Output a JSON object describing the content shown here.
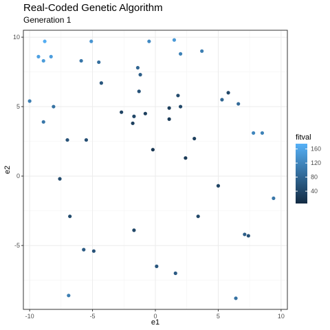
{
  "chart_data": {
    "type": "scatter",
    "title": "Real-Coded Genetic Algorithm",
    "subtitle": "Generation 1",
    "xlabel": "e1",
    "ylabel": "e2",
    "xlim": [
      -10.5,
      10.5
    ],
    "ylim": [
      -9.6,
      10.5
    ],
    "x_ticks": [
      -10,
      -5,
      0,
      5,
      10
    ],
    "y_ticks": [
      -5,
      0,
      5,
      10
    ],
    "x_tick_labels": [
      "-10",
      "-5",
      "0",
      "5",
      "10"
    ],
    "y_tick_labels": [
      "-5",
      "0",
      "5",
      "10"
    ],
    "grid": true,
    "legend": {
      "title": "fitval",
      "placement": "right",
      "range": [
        5,
        175
      ],
      "ticks": [
        40,
        80,
        120,
        160
      ],
      "tick_labels": [
        "40",
        "80",
        "120",
        "160"
      ],
      "color_low": "#132b43",
      "color_high": "#56b1f7"
    },
    "points": [
      {
        "x": -8.8,
        "y": 9.7,
        "fitval": 170
      },
      {
        "x": -9.3,
        "y": 8.6,
        "fitval": 155
      },
      {
        "x": -8.3,
        "y": 8.6,
        "fitval": 150
      },
      {
        "x": -8.9,
        "y": 8.3,
        "fitval": 148
      },
      {
        "x": -5.1,
        "y": 9.7,
        "fitval": 140
      },
      {
        "x": -0.5,
        "y": 9.7,
        "fitval": 125
      },
      {
        "x": 1.5,
        "y": 9.8,
        "fitval": 145
      },
      {
        "x": 2.0,
        "y": 8.8,
        "fitval": 115
      },
      {
        "x": 3.7,
        "y": 9.0,
        "fitval": 110
      },
      {
        "x": -5.9,
        "y": 8.3,
        "fitval": 100
      },
      {
        "x": -4.5,
        "y": 8.2,
        "fitval": 90
      },
      {
        "x": -1.4,
        "y": 7.8,
        "fitval": 80
      },
      {
        "x": -1.2,
        "y": 7.3,
        "fitval": 70
      },
      {
        "x": -4.3,
        "y": 6.7,
        "fitval": 60
      },
      {
        "x": -1.3,
        "y": 6.1,
        "fitval": 55
      },
      {
        "x": 1.8,
        "y": 5.8,
        "fitval": 45
      },
      {
        "x": 5.8,
        "y": 6.0,
        "fitval": 40
      },
      {
        "x": 5.3,
        "y": 5.5,
        "fitval": 80
      },
      {
        "x": 6.6,
        "y": 5.2,
        "fitval": 85
      },
      {
        "x": -10.0,
        "y": 5.4,
        "fitval": 110
      },
      {
        "x": -8.1,
        "y": 5.0,
        "fitval": 95
      },
      {
        "x": 2.0,
        "y": 5.0,
        "fitval": 40
      },
      {
        "x": 1.1,
        "y": 4.9,
        "fitval": 30
      },
      {
        "x": -2.7,
        "y": 4.6,
        "fitval": 35
      },
      {
        "x": -0.8,
        "y": 4.5,
        "fitval": 30
      },
      {
        "x": -1.7,
        "y": 4.3,
        "fitval": 40
      },
      {
        "x": 1.1,
        "y": 4.1,
        "fitval": 25
      },
      {
        "x": -1.8,
        "y": 3.8,
        "fitval": 30
      },
      {
        "x": -8.9,
        "y": 3.9,
        "fitval": 100
      },
      {
        "x": 7.8,
        "y": 3.1,
        "fitval": 120
      },
      {
        "x": 8.5,
        "y": 3.1,
        "fitval": 115
      },
      {
        "x": -7.0,
        "y": 2.6,
        "fitval": 55
      },
      {
        "x": -5.5,
        "y": 2.6,
        "fitval": 50
      },
      {
        "x": 3.1,
        "y": 2.7,
        "fitval": 30
      },
      {
        "x": -0.2,
        "y": 1.9,
        "fitval": 20
      },
      {
        "x": 2.4,
        "y": 1.3,
        "fitval": 25
      },
      {
        "x": -7.6,
        "y": -0.2,
        "fitval": 45
      },
      {
        "x": 5.0,
        "y": -0.7,
        "fitval": 35
      },
      {
        "x": 9.4,
        "y": -1.6,
        "fitval": 100
      },
      {
        "x": -6.8,
        "y": -2.9,
        "fitval": 45
      },
      {
        "x": 3.4,
        "y": -2.9,
        "fitval": 40
      },
      {
        "x": -1.7,
        "y": -3.9,
        "fitval": 40
      },
      {
        "x": 7.1,
        "y": -4.2,
        "fitval": 70
      },
      {
        "x": 7.4,
        "y": -4.3,
        "fitval": 55
      },
      {
        "x": -5.7,
        "y": -5.3,
        "fitval": 65
      },
      {
        "x": -4.9,
        "y": -5.4,
        "fitval": 55
      },
      {
        "x": 0.1,
        "y": -6.5,
        "fitval": 60
      },
      {
        "x": 1.6,
        "y": -7.0,
        "fitval": 65
      },
      {
        "x": -6.9,
        "y": -8.6,
        "fitval": 110
      },
      {
        "x": 6.4,
        "y": -8.8,
        "fitval": 95
      }
    ]
  }
}
